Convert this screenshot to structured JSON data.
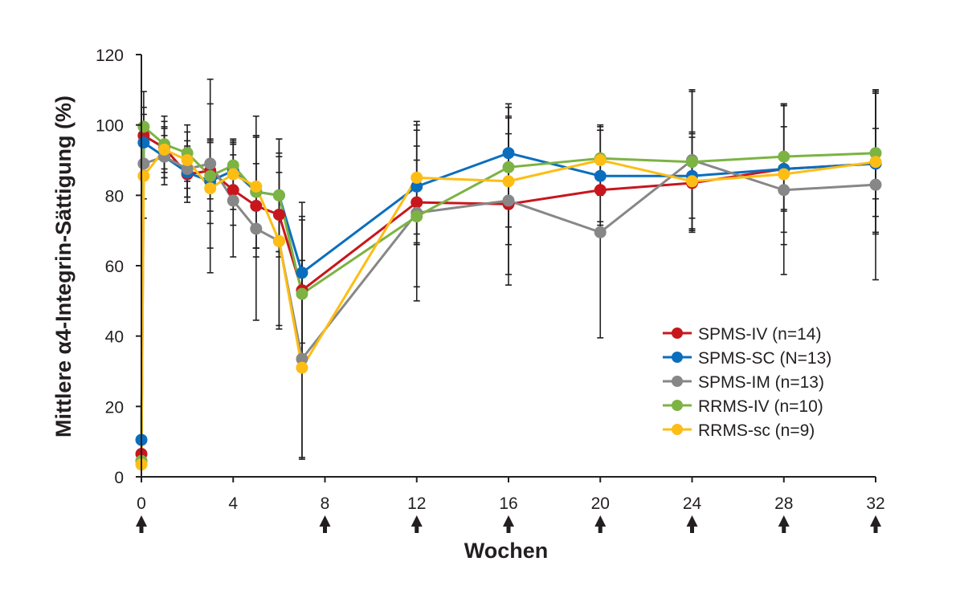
{
  "chart_data": {
    "type": "line",
    "title": "",
    "xlabel": "Wochen",
    "ylabel": "Mittlere α4-Integrin-Sättigung (%)",
    "xlim": [
      0,
      32
    ],
    "ylim": [
      0,
      120
    ],
    "x_ticks": [
      0,
      4,
      8,
      12,
      16,
      20,
      24,
      28,
      32
    ],
    "y_ticks": [
      0,
      20,
      40,
      60,
      80,
      100,
      120
    ],
    "dosing_arrows_at_weeks": [
      0,
      8,
      12,
      16,
      20,
      24,
      28,
      32
    ],
    "grid": false,
    "legend_position": "lower-right",
    "error_bars": true,
    "series": [
      {
        "name": "SPMS-IV (n=14)",
        "color": "#c8161d",
        "x": [
          0,
          0.1,
          1,
          2,
          3,
          4,
          5,
          6,
          7,
          12,
          16,
          20,
          24,
          28,
          32
        ],
        "values": [
          6.5,
          97,
          93.5,
          86,
          87,
          81.5,
          77,
          74.5,
          53,
          78,
          77.5,
          81.5,
          83.5,
          87.5,
          89
        ],
        "error": [
          null,
          8,
          6,
          8,
          8,
          10,
          12,
          12,
          20,
          12,
          20,
          10,
          13,
          12,
          10
        ]
      },
      {
        "name": "SPMS-SC (N=13)",
        "color": "#0a6ebd",
        "x": [
          0,
          0.1,
          1,
          2,
          3,
          4,
          5,
          6,
          7,
          12,
          16,
          20,
          24,
          28,
          32
        ],
        "values": [
          10.5,
          95,
          91,
          86.5,
          84,
          87,
          81,
          80,
          58,
          82.5,
          92,
          85.5,
          85.5,
          87.5,
          89
        ],
        "error": [
          null,
          8,
          6,
          7,
          12,
          8,
          16,
          16,
          20,
          16,
          14,
          13,
          12,
          18,
          20
        ]
      },
      {
        "name": "SPMS-IM (n=13)",
        "color": "#878787",
        "x": [
          0,
          0.1,
          1,
          2,
          3,
          4,
          5,
          6,
          7,
          12,
          16,
          20,
          24,
          28,
          32
        ],
        "values": [
          4.5,
          89,
          91,
          87.5,
          89,
          78.5,
          70.5,
          67,
          33.5,
          75,
          78.5,
          69.5,
          90,
          81.5,
          83
        ],
        "error": [
          null,
          10,
          8,
          8,
          24,
          16,
          26,
          25,
          28,
          25,
          24,
          30,
          20,
          24,
          27
        ]
      },
      {
        "name": "RRMS-IV (n=10)",
        "color": "#7cb342",
        "x": [
          0,
          0.1,
          1,
          2,
          3,
          4,
          5,
          6,
          7,
          12,
          16,
          20,
          24,
          28,
          32
        ],
        "values": [
          4.5,
          99.5,
          94.5,
          92,
          85.5,
          88.5,
          81,
          80,
          52,
          74,
          88,
          90.5,
          89.5,
          91,
          92
        ],
        "error": [
          null,
          10,
          8,
          8,
          10,
          7,
          16,
          16,
          22,
          20,
          17,
          8,
          20,
          15,
          18
        ]
      },
      {
        "name": "RRMS-sc (n=9)",
        "color": "#fdbd14",
        "x": [
          0,
          0.1,
          1,
          2,
          3,
          4,
          5,
          6,
          7,
          12,
          16,
          20,
          24,
          28,
          32
        ],
        "values": [
          3.5,
          85.5,
          93,
          90,
          82,
          86,
          82.5,
          67,
          31,
          85,
          84,
          90,
          84,
          86,
          89.5
        ],
        "error": [
          null,
          12,
          8,
          8,
          24,
          10,
          20,
          24,
          26,
          16,
          18,
          10,
          14,
          20,
          20
        ]
      }
    ]
  }
}
